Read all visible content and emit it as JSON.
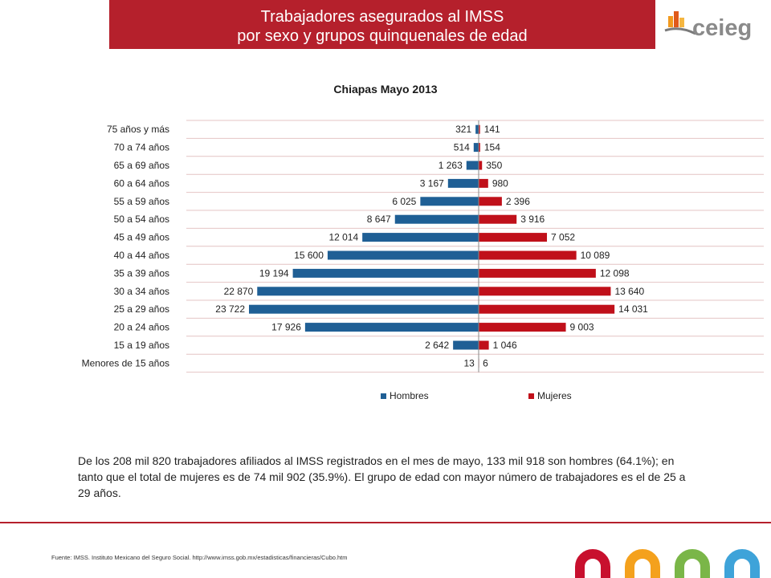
{
  "header": {
    "title_line1": "Trabajadores asegurados al IMSS",
    "title_line2": "por sexo y grupos quinquenales de edad"
  },
  "logo": {
    "text": "ceieg"
  },
  "chart_data": {
    "type": "bar",
    "orientation": "horizontal",
    "title": "Chiapas Mayo 2013",
    "categories": [
      "75 años y más",
      "70 a 74 años",
      "65 a 69 años",
      "60 a 64 años",
      "55 a 59 años",
      "50 a 54 años",
      "45 a 49 años",
      "40 a 44 años",
      "35 a 39 años",
      "30 a 34 años",
      "25 a 29 años",
      "20 a 24 años",
      "15 a 19 años",
      "Menores de 15 años"
    ],
    "series": [
      {
        "name": "Hombres",
        "color": "#1f5f95",
        "values": [
          321,
          514,
          1263,
          3167,
          6025,
          8647,
          12014,
          15600,
          19194,
          22870,
          23722,
          17926,
          2642,
          13
        ],
        "labels": [
          "321",
          "514",
          "1 263",
          "3 167",
          "6 025",
          "8 647",
          "12 014",
          "15 600",
          "19 194",
          "22 870",
          "23 722",
          "17 926",
          "2 642",
          "13"
        ]
      },
      {
        "name": "Mujeres",
        "color": "#c0101a",
        "values": [
          141,
          154,
          350,
          980,
          2396,
          3916,
          7052,
          10089,
          12098,
          13640,
          14031,
          9003,
          1046,
          6
        ],
        "labels": [
          "141",
          "154",
          "350",
          "980",
          "2 396",
          "3 916",
          "7 052",
          "10 089",
          "12 098",
          "13 640",
          "14 031",
          "9 003",
          "1 046",
          "6"
        ]
      }
    ],
    "legend_position": "bottom",
    "grid": true
  },
  "summary": "De los 208 mil 820 trabajadores afiliados al IMSS registrados en el mes de mayo, 133 mil 918 son hombres (64.1%); en tanto que el total de mujeres es de 74 mil 902 (35.9%). El grupo de edad con mayor número de trabajadores es el de 25 a 29 años.",
  "footer": {
    "source": "Fuente:   IMSS. Instituto Mexicano del Seguro Social. http://www.imss.gob.mx/estadisticas/financieras/Cubo.htm"
  },
  "colors": {
    "brand_red": "#b5202c",
    "hombres": "#1f5f95",
    "mujeres": "#c0101a"
  }
}
